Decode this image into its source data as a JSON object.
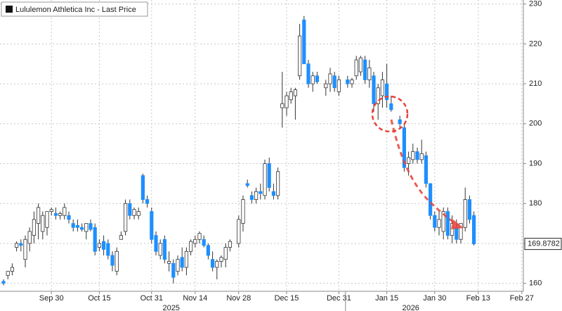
{
  "chart_data": {
    "type": "candlestick",
    "title": "Lululemon Athletica Inc - Last Price",
    "x": [
      "2025-09-15",
      "2025-09-16",
      "2025-09-17",
      "2025-09-18",
      "2025-09-19",
      "2025-09-22",
      "2025-09-23",
      "2025-09-24",
      "2025-09-25",
      "2025-09-26",
      "2025-09-29",
      "2025-09-30",
      "2025-10-01",
      "2025-10-02",
      "2025-10-03",
      "2025-10-06",
      "2025-10-07",
      "2025-10-08",
      "2025-10-09",
      "2025-10-10",
      "2025-10-13",
      "2025-10-14",
      "2025-10-15",
      "2025-10-16",
      "2025-10-17",
      "2025-10-20",
      "2025-10-21",
      "2025-10-22",
      "2025-10-23",
      "2025-10-24",
      "2025-10-27",
      "2025-10-28",
      "2025-10-29",
      "2025-10-30",
      "2025-10-31",
      "2025-11-03",
      "2025-11-04",
      "2025-11-05",
      "2025-11-06",
      "2025-11-07",
      "2025-11-10",
      "2025-11-11",
      "2025-11-12",
      "2025-11-13",
      "2025-11-14",
      "2025-11-17",
      "2025-11-18",
      "2025-11-19",
      "2025-11-20",
      "2025-11-21",
      "2025-11-24",
      "2025-11-25",
      "2025-11-26",
      "2025-11-28",
      "2025-12-01",
      "2025-12-02",
      "2025-12-03",
      "2025-12-04",
      "2025-12-05",
      "2025-12-08",
      "2025-12-09",
      "2025-12-10",
      "2025-12-11",
      "2025-12-12",
      "2025-12-15",
      "2025-12-16",
      "2025-12-17",
      "2025-12-18",
      "2025-12-19",
      "2025-12-22",
      "2025-12-23",
      "2025-12-24",
      "2025-12-26",
      "2025-12-29",
      "2025-12-30",
      "2025-12-31",
      "2026-01-02",
      "2026-01-05",
      "2026-01-06",
      "2026-01-07",
      "2026-01-08",
      "2026-01-09",
      "2026-01-12",
      "2026-01-13",
      "2026-01-14",
      "2026-01-15",
      "2026-01-16",
      "2026-01-20",
      "2026-01-21",
      "2026-01-22",
      "2026-01-23",
      "2026-01-26",
      "2026-01-27",
      "2026-01-28",
      "2026-01-29",
      "2026-01-30",
      "2026-02-02",
      "2026-02-03",
      "2026-02-04",
      "2026-02-05",
      "2026-02-06",
      "2026-02-09",
      "2026-02-10",
      "2026-02-11",
      "2026-02-12"
    ],
    "open": [
      160.5,
      162,
      163,
      169,
      170,
      166,
      170,
      172,
      175,
      173,
      174,
      178,
      177.5,
      177,
      177,
      177,
      175,
      174.5,
      174,
      173,
      175,
      174,
      169,
      170.5,
      170,
      167,
      163,
      171,
      173,
      180,
      177,
      177,
      187,
      181,
      178,
      172,
      167,
      171,
      165,
      165,
      163,
      166.5,
      164,
      168,
      170,
      171,
      171,
      169.5,
      166,
      164,
      165.5,
      166,
      169,
      170,
      175,
      185,
      182,
      181,
      183,
      182,
      190,
      183,
      182,
      204,
      204,
      206,
      207,
      212,
      226,
      215,
      210,
      212,
      209,
      210,
      212,
      208,
      211,
      210,
      212,
      213,
      216,
      211,
      212,
      205,
      207,
      210,
      205,
      201,
      199,
      190,
      191,
      193,
      191,
      192,
      185,
      177,
      174,
      173,
      178,
      172,
      174,
      171,
      174,
      181,
      177
    ],
    "high": [
      161,
      163,
      165,
      170.5,
      171,
      172,
      174,
      178,
      180,
      178,
      178,
      179,
      179,
      178,
      180,
      178,
      176,
      176,
      175,
      175,
      176,
      175,
      171,
      172,
      171,
      168,
      169,
      173,
      181,
      181,
      179,
      179,
      187.5,
      182,
      179,
      173,
      171,
      172,
      168,
      166,
      167,
      169,
      169,
      171,
      172,
      173,
      172,
      170,
      168,
      166,
      167,
      170,
      171,
      177,
      182,
      186,
      183,
      184,
      185,
      191,
      191.5,
      185,
      189,
      213,
      208,
      209,
      209,
      225,
      227,
      216,
      213,
      213,
      211,
      214,
      213,
      212,
      212,
      211.5,
      217,
      217,
      217,
      216,
      213,
      210,
      213,
      215,
      207,
      202,
      200,
      193,
      195,
      194,
      196,
      193,
      185,
      178,
      178,
      179,
      179,
      177,
      176,
      175,
      184,
      182,
      178
    ],
    "low": [
      159.5,
      161,
      162,
      168,
      168,
      164,
      168,
      170,
      171,
      171,
      172,
      177,
      176,
      176,
      176,
      175,
      173,
      173,
      173,
      171,
      173,
      167,
      168,
      167,
      166,
      163,
      162,
      171,
      172,
      176,
      176,
      176,
      180,
      179,
      170,
      167,
      166,
      165,
      163,
      160,
      162,
      163,
      162,
      167,
      169,
      170,
      169,
      166,
      163,
      161,
      164,
      164,
      168,
      169,
      173,
      184,
      180,
      180,
      181,
      181,
      183,
      181,
      181,
      199,
      202,
      205,
      201,
      211,
      215,
      209,
      208,
      210,
      207,
      208,
      208,
      207,
      209,
      209,
      211,
      212,
      210,
      209,
      203,
      201,
      204,
      204,
      203,
      199,
      188,
      187,
      190,
      190,
      190,
      184,
      176,
      173,
      172,
      171,
      171,
      170,
      170,
      170,
      173,
      175,
      169.5
    ],
    "close": [
      160,
      163,
      164,
      170,
      169.5,
      171,
      173,
      176,
      179,
      177,
      178,
      178.5,
      177,
      177.5,
      179,
      176,
      174,
      174,
      173.5,
      175,
      173.5,
      168,
      170,
      168.5,
      167,
      164.5,
      168,
      172,
      180,
      177,
      178.5,
      178,
      181,
      180,
      171,
      168,
      170,
      166,
      165.5,
      161.5,
      166,
      164,
      168,
      170.5,
      171,
      172.5,
      169.5,
      167,
      164,
      165.5,
      166.5,
      169,
      170.5,
      176,
      181,
      184.5,
      181,
      183,
      182.5,
      190,
      184,
      182,
      188,
      205,
      207,
      208,
      208.5,
      222,
      215,
      210,
      212,
      210.5,
      210,
      212.5,
      209,
      211,
      210,
      211,
      216,
      216.5,
      211,
      214,
      205,
      209,
      211,
      206,
      203.5,
      200,
      189,
      191.5,
      193,
      191,
      192.5,
      185,
      177,
      174,
      176,
      178,
      172,
      175,
      171,
      175,
      181,
      176,
      169.8782
    ],
    "up_color": "#ffffff",
    "down_color": "#1e8fff",
    "ylim": [
      158,
      231
    ],
    "yticks": [
      160,
      170,
      180,
      190,
      200,
      210,
      220,
      230
    ],
    "xticks": [
      {
        "value": "2025-09-30",
        "label": "Sep 30"
      },
      {
        "value": "2025-10-15",
        "label": "Oct 15"
      },
      {
        "value": "2025-10-31",
        "label": "Oct 31"
      },
      {
        "value": "2025-11-14",
        "label": "Nov 14"
      },
      {
        "value": "2025-11-28",
        "label": "Nov 28"
      },
      {
        "value": "2025-12-15",
        "label": "Dec 15"
      },
      {
        "value": "2025-12-31",
        "label": "Dec 31"
      },
      {
        "value": "2026-01-15",
        "label": "Jan 15"
      },
      {
        "value": "2026-01-30",
        "label": "Jan 30"
      },
      {
        "value": "2026-02-13",
        "label": "Feb 13"
      },
      {
        "value": "2026-02-27",
        "label": "Feb 27"
      }
    ],
    "years": [
      "2025",
      "2026"
    ],
    "grid": true
  }
}
